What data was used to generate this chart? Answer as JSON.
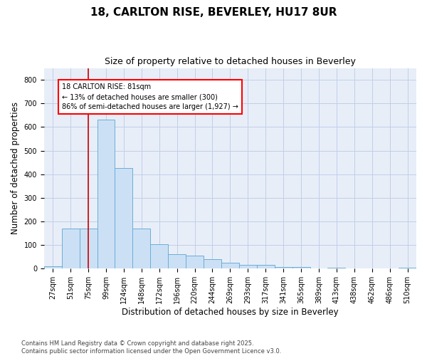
{
  "title1": "18, CARLTON RISE, BEVERLEY, HU17 8UR",
  "title2": "Size of property relative to detached houses in Beverley",
  "xlabel": "Distribution of detached houses by size in Beverley",
  "ylabel": "Number of detached properties",
  "categories": [
    "27sqm",
    "51sqm",
    "75sqm",
    "99sqm",
    "124sqm",
    "148sqm",
    "172sqm",
    "196sqm",
    "220sqm",
    "244sqm",
    "269sqm",
    "293sqm",
    "317sqm",
    "341sqm",
    "365sqm",
    "389sqm",
    "413sqm",
    "438sqm",
    "462sqm",
    "486sqm",
    "510sqm"
  ],
  "values": [
    10,
    170,
    170,
    630,
    425,
    170,
    105,
    60,
    55,
    40,
    25,
    15,
    15,
    7,
    7,
    2,
    5,
    2,
    2,
    2,
    5
  ],
  "bar_color": "#cce0f5",
  "bar_edge_color": "#6aaed6",
  "grid_color": "#c0cfe8",
  "bg_color": "#e8eef8",
  "annotation_text": "18 CARLTON RISE: 81sqm\n← 13% of detached houses are smaller (300)\n86% of semi-detached houses are larger (1,927) →",
  "vline_x": 2.0,
  "vline_color": "#cc0000",
  "ylim": [
    0,
    850
  ],
  "yticks": [
    0,
    100,
    200,
    300,
    400,
    500,
    600,
    700,
    800
  ],
  "footnote": "Contains HM Land Registry data © Crown copyright and database right 2025.\nContains public sector information licensed under the Open Government Licence v3.0.",
  "title_fontsize": 11,
  "subtitle_fontsize": 9,
  "tick_fontsize": 7,
  "label_fontsize": 8.5
}
